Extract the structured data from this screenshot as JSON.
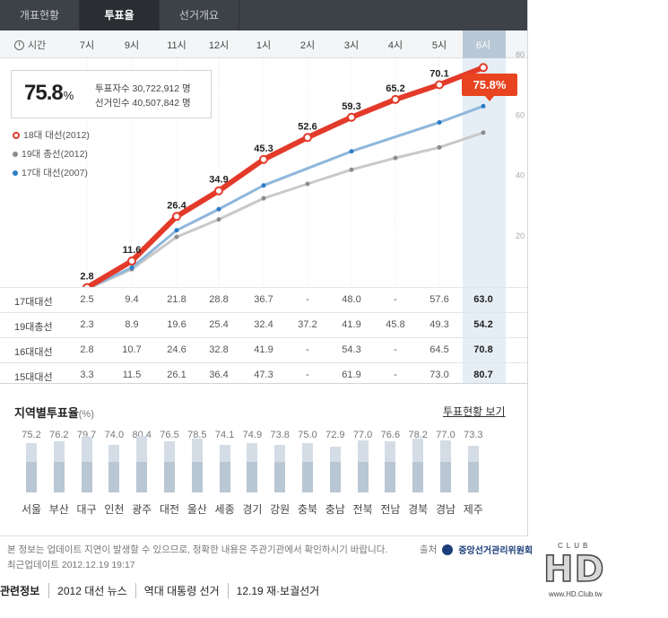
{
  "tabs": [
    {
      "label": "개표현황",
      "active": false
    },
    {
      "label": "투표율",
      "active": true
    },
    {
      "label": "선거개요",
      "active": false
    }
  ],
  "time_label": "시간",
  "hours": [
    "7시",
    "9시",
    "11시",
    "12시",
    "1시",
    "2시",
    "3시",
    "4시",
    "5시",
    "6시"
  ],
  "summary": {
    "pct": "75.8",
    "pct_unit": "%",
    "voters": "투표자수 30,722,912 명",
    "electors": "선거인수 40,507,842 명"
  },
  "callout": "75.8%",
  "chart_data": {
    "type": "line",
    "categories": [
      "7시",
      "9시",
      "11시",
      "12시",
      "1시",
      "2시",
      "3시",
      "4시",
      "5시",
      "6시"
    ],
    "series": [
      {
        "name": "18대 대선(2012)",
        "color": "#e33a2a",
        "values": [
          2.8,
          11.6,
          26.4,
          34.9,
          45.3,
          52.6,
          59.3,
          65.2,
          70.1,
          75.8
        ]
      },
      {
        "name": "19대 총선(2012)",
        "color": "#8c8c8c",
        "values": [
          2.3,
          8.9,
          19.6,
          25.4,
          32.4,
          37.2,
          41.9,
          45.8,
          49.3,
          54.2
        ]
      },
      {
        "name": "17대 대선(2007)",
        "color": "#2b7cc6",
        "values": [
          2.5,
          9.4,
          21.8,
          28.8,
          36.7,
          null,
          48.0,
          null,
          57.6,
          63.0
        ]
      }
    ],
    "y_ticks": [
      20,
      40,
      60,
      80
    ],
    "ylim": [
      0,
      90
    ],
    "data_labels": [
      "2.8",
      "11.6",
      "26.4",
      "34.9",
      "45.3",
      "52.6",
      "59.3",
      "65.2",
      "70.1"
    ]
  },
  "table": [
    {
      "label": "17대대선",
      "values": [
        "2.5",
        "9.4",
        "21.8",
        "28.8",
        "36.7",
        "-",
        "48.0",
        "-",
        "57.6",
        "63.0"
      ]
    },
    {
      "label": "19대총선",
      "values": [
        "2.3",
        "8.9",
        "19.6",
        "25.4",
        "32.4",
        "37.2",
        "41.9",
        "45.8",
        "49.3",
        "54.2"
      ]
    },
    {
      "label": "16대대선",
      "values": [
        "2.8",
        "10.7",
        "24.6",
        "32.8",
        "41.9",
        "-",
        "54.3",
        "-",
        "64.5",
        "70.8"
      ]
    },
    {
      "label": "15대대선",
      "values": [
        "3.3",
        "11.5",
        "26.1",
        "36.4",
        "47.3",
        "-",
        "61.9",
        "-",
        "73.0",
        "80.7"
      ]
    }
  ],
  "region": {
    "title": "지역별투표율",
    "unit": "(%)",
    "link": "투표현황 보기",
    "items": [
      {
        "name": "서울",
        "value": 75.2
      },
      {
        "name": "부산",
        "value": 76.2
      },
      {
        "name": "대구",
        "value": 79.7
      },
      {
        "name": "인천",
        "value": 74.0
      },
      {
        "name": "광주",
        "value": 80.4
      },
      {
        "name": "대전",
        "value": 76.5
      },
      {
        "name": "울산",
        "value": 78.5
      },
      {
        "name": "세종",
        "value": 74.1
      },
      {
        "name": "경기",
        "value": 74.9
      },
      {
        "name": "강원",
        "value": 73.8
      },
      {
        "name": "충북",
        "value": 75.0
      },
      {
        "name": "충남",
        "value": 72.9
      },
      {
        "name": "전북",
        "value": 77.0
      },
      {
        "name": "전남",
        "value": 76.6
      },
      {
        "name": "경북",
        "value": 78.2
      },
      {
        "name": "경남",
        "value": 77.0
      },
      {
        "name": "제주",
        "value": 73.3
      }
    ],
    "labels": [
      "75.2",
      "76.2",
      "79.7",
      "74.0",
      "80.4",
      "76.5",
      "78.5",
      "74.1",
      "74.9",
      "73.8",
      "75.0",
      "72.9",
      "77.0",
      "76.6",
      "78.2",
      "77.0",
      "73.3"
    ]
  },
  "footer": {
    "notice": "본 정보는 업데이트 지연이 발생할 수 있으므로, 정확한 내용은 주관기관에서 확인하시기 바랍니다.",
    "updated": "최근업데이트 2012.12.19 19:17",
    "source_label": "출처",
    "source_name": "중앙선거관리위원회"
  },
  "related": {
    "label": "관련정보",
    "items": [
      "2012 대선 뉴스",
      "역대 대통령 선거",
      "12.19 재·보궐선거"
    ]
  },
  "watermark": {
    "main": "HD",
    "sub": "www.HD.Club.tw",
    "top": "CLUB"
  }
}
